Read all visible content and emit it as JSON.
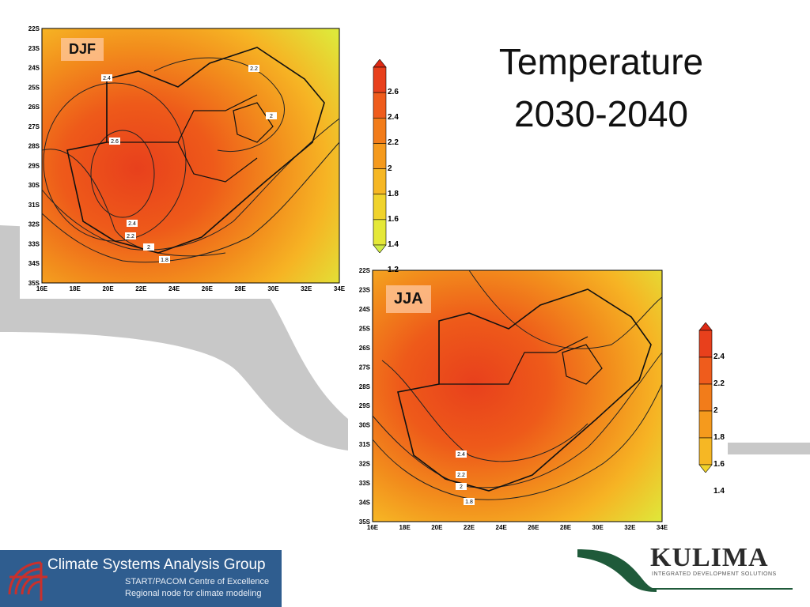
{
  "slide": {
    "title_line1": "Temperature",
    "title_line2": "2030-2040"
  },
  "maps": {
    "djf": {
      "label": "DJF",
      "lat_ticks": [
        "22S",
        "23S",
        "24S",
        "25S",
        "26S",
        "27S",
        "28S",
        "29S",
        "30S",
        "31S",
        "32S",
        "33S",
        "34S",
        "35S"
      ],
      "lon_ticks": [
        "16E",
        "18E",
        "20E",
        "22E",
        "24E",
        "26E",
        "28E",
        "30E",
        "32E",
        "34E"
      ],
      "contour_labels": [
        "2.4",
        "2.2",
        "2",
        "2.6",
        "2.4",
        "2.2",
        "2",
        "1.8"
      ]
    },
    "jja": {
      "label": "JJA",
      "lat_ticks": [
        "22S",
        "23S",
        "24S",
        "25S",
        "26S",
        "27S",
        "28S",
        "29S",
        "30S",
        "31S",
        "32S",
        "33S",
        "34S",
        "35S"
      ],
      "lon_ticks": [
        "16E",
        "18E",
        "20E",
        "22E",
        "24E",
        "26E",
        "28E",
        "30E",
        "32E",
        "34E"
      ],
      "contour_labels": [
        "2.4",
        "2.2",
        "2",
        "1.8"
      ]
    }
  },
  "colorbars": {
    "djf": [
      "2.6",
      "2.4",
      "2.2",
      "2",
      "1.8",
      "1.6",
      "1.4",
      "1.2"
    ],
    "jja": [
      "2.4",
      "2.2",
      "2",
      "1.8",
      "1.6",
      "1.4"
    ]
  },
  "colors": {
    "hot": "#e8401c",
    "warm": "#f07a18",
    "mid": "#f5a81e",
    "cool": "#d8e830",
    "swoosh": "#c8c8c8",
    "csag_bg": "#2f5d8f"
  },
  "logos": {
    "csag_name": "Climate Systems Analysis Group",
    "csag_line1": "START/PACOM Centre of Excellence",
    "csag_line2": "Regional node for climate modeling",
    "kulima_name": "KULIMA",
    "kulima_tag": "INTEGRATED DEVELOPMENT SOLUTIONS"
  }
}
